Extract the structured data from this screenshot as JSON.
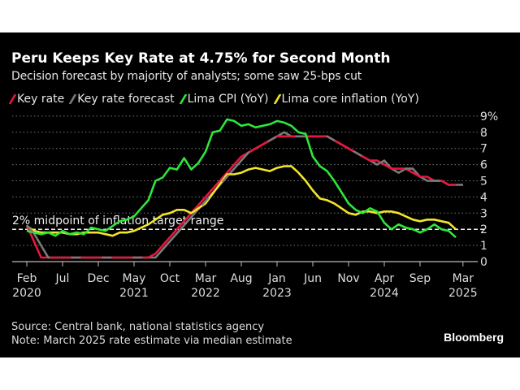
{
  "title": "Peru Keeps Key Rate at 4.75% for Second Month",
  "subtitle": "Decision forecast by majority of analysts; some saw 25-bps cut",
  "footer": {
    "source": "Source: Central bank, national statistics agency",
    "note": "Note: March 2025 rate estimate via median estimate",
    "brand": "Bloomberg"
  },
  "chart_data": {
    "type": "line",
    "title": "Peru Keeps Key Rate at 4.75% for Second Month",
    "subtitle": "Decision forecast by majority of analysts; some saw 25-bps cut",
    "x_start": "2020-02",
    "x_frequency": "monthly",
    "x_ticks": [
      {
        "month": "2020-02",
        "label": "Feb",
        "year": "2020"
      },
      {
        "month": "2020-07",
        "label": "Jul",
        "year": ""
      },
      {
        "month": "2020-12",
        "label": "Dec",
        "year": ""
      },
      {
        "month": "2021-05",
        "label": "May",
        "year": "2021"
      },
      {
        "month": "2021-10",
        "label": "Oct",
        "year": ""
      },
      {
        "month": "2022-03",
        "label": "Mar",
        "year": "2022"
      },
      {
        "month": "2022-08",
        "label": "Aug",
        "year": ""
      },
      {
        "month": "2023-01",
        "label": "Jan",
        "year": "2023"
      },
      {
        "month": "2023-06",
        "label": "Jun",
        "year": ""
      },
      {
        "month": "2023-11",
        "label": "Nov",
        "year": ""
      },
      {
        "month": "2024-04",
        "label": "Apr",
        "year": "2024"
      },
      {
        "month": "2024-09",
        "label": "Sep",
        "year": ""
      },
      {
        "month": "2025-03",
        "label": "Mar",
        "year": "2025"
      }
    ],
    "y_ticks": [
      "0",
      "1",
      "2",
      "3",
      "4",
      "5",
      "6",
      "7",
      "8",
      "9%"
    ],
    "ylim": [
      0,
      9
    ],
    "grid": true,
    "legend_position": "top-left",
    "reference_line": {
      "value": 2,
      "label": "2% midpoint of inflation target range"
    },
    "series": [
      {
        "name": "Key rate",
        "color": "#e8163c",
        "values": [
          2.25,
          1.25,
          0.25,
          0.25,
          0.25,
          0.25,
          0.25,
          0.25,
          0.25,
          0.25,
          0.25,
          0.25,
          0.25,
          0.25,
          0.25,
          0.25,
          0.25,
          0.25,
          0.5,
          1.0,
          1.5,
          2.0,
          2.5,
          3.0,
          3.5,
          4.0,
          4.5,
          5.0,
          5.5,
          6.0,
          6.5,
          6.75,
          7.0,
          7.25,
          7.5,
          7.75,
          7.75,
          7.75,
          7.75,
          7.75,
          7.75,
          7.75,
          7.75,
          7.5,
          7.25,
          7.0,
          6.75,
          6.5,
          6.25,
          6.25,
          6.0,
          5.75,
          5.75,
          5.75,
          5.5,
          5.25,
          5.25,
          5.0,
          5.0,
          4.75,
          4.75
        ]
      },
      {
        "name": "Key rate forecast",
        "color": "#7a7a7a",
        "values": [
          2.25,
          1.75,
          1.0,
          0.25,
          0.25,
          0.25,
          0.25,
          0.25,
          0.25,
          0.25,
          0.25,
          0.25,
          0.25,
          0.25,
          0.25,
          0.25,
          0.25,
          0.25,
          0.25,
          0.75,
          1.25,
          1.75,
          2.25,
          2.75,
          3.25,
          3.75,
          4.25,
          4.75,
          5.25,
          5.75,
          6.25,
          6.75,
          7.0,
          7.25,
          7.5,
          7.75,
          8.0,
          7.75,
          7.75,
          7.75,
          7.75,
          7.75,
          7.75,
          7.5,
          7.25,
          7.0,
          6.75,
          6.5,
          6.25,
          6.0,
          6.25,
          5.75,
          5.5,
          5.75,
          5.75,
          5.25,
          5.0,
          5.0,
          5.0,
          4.75,
          4.75,
          4.75
        ]
      },
      {
        "name": "Lima CPI (YoY)",
        "color": "#2ee63a",
        "values": [
          1.9,
          1.8,
          1.7,
          1.8,
          1.6,
          1.9,
          1.7,
          1.8,
          1.7,
          2.1,
          2.0,
          1.9,
          2.2,
          2.5,
          2.6,
          2.8,
          3.3,
          3.8,
          5.0,
          5.2,
          5.8,
          5.7,
          6.4,
          5.7,
          6.1,
          6.8,
          8.0,
          8.1,
          8.8,
          8.7,
          8.4,
          8.5,
          8.3,
          8.4,
          8.5,
          8.7,
          8.6,
          8.4,
          8.0,
          7.9,
          6.5,
          5.9,
          5.6,
          5.0,
          4.3,
          3.6,
          3.2,
          3.0,
          3.3,
          3.1,
          2.4,
          2.0,
          2.3,
          2.1,
          2.0,
          1.8,
          2.0,
          2.3,
          2.0,
          1.9,
          1.5
        ]
      },
      {
        "name": "Lima core inflation (YoY)",
        "color": "#f2e52a",
        "values": [
          2.2,
          1.9,
          1.8,
          1.8,
          1.8,
          1.8,
          1.7,
          1.7,
          1.8,
          1.8,
          1.8,
          1.7,
          1.6,
          1.8,
          1.8,
          1.9,
          2.1,
          2.3,
          2.6,
          2.9,
          3.0,
          3.2,
          3.2,
          3.0,
          3.3,
          3.6,
          4.2,
          4.8,
          5.4,
          5.4,
          5.5,
          5.7,
          5.8,
          5.7,
          5.6,
          5.8,
          5.9,
          5.9,
          5.5,
          5.0,
          4.4,
          3.9,
          3.8,
          3.6,
          3.3,
          3.0,
          2.9,
          3.1,
          3.1,
          3.0,
          3.1,
          3.1,
          3.0,
          2.8,
          2.6,
          2.5,
          2.6,
          2.6,
          2.5,
          2.4,
          2.0
        ]
      }
    ]
  }
}
